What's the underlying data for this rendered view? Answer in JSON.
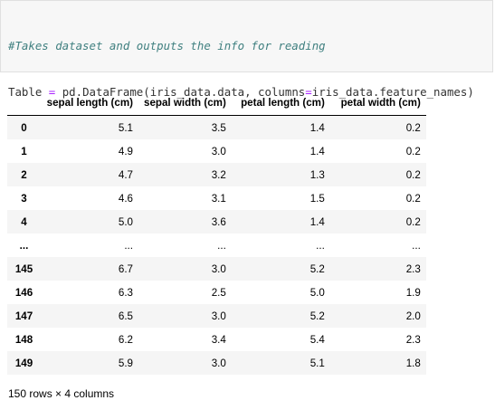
{
  "code": {
    "comment": "#Takes dataset and outputs the info for reading",
    "line2_var": "Table",
    "line2_op": "=",
    "line2_call_a": "pd.DataFrame(iris_data.data, columns",
    "line2_op2": "=",
    "line2_call_b": "iris_data.feature_names)",
    "line4": "Table"
  },
  "table": {
    "index_header": "",
    "columns": [
      "sepal length (cm)",
      "sepal width (cm)",
      "petal length (cm)",
      "petal width (cm)"
    ],
    "rows": [
      {
        "index": "0",
        "values": [
          "5.1",
          "3.5",
          "1.4",
          "0.2"
        ]
      },
      {
        "index": "1",
        "values": [
          "4.9",
          "3.0",
          "1.4",
          "0.2"
        ]
      },
      {
        "index": "2",
        "values": [
          "4.7",
          "3.2",
          "1.3",
          "0.2"
        ]
      },
      {
        "index": "3",
        "values": [
          "4.6",
          "3.1",
          "1.5",
          "0.2"
        ]
      },
      {
        "index": "4",
        "values": [
          "5.0",
          "3.6",
          "1.4",
          "0.2"
        ]
      },
      {
        "index": "...",
        "values": [
          "...",
          "...",
          "...",
          "..."
        ]
      },
      {
        "index": "145",
        "values": [
          "6.7",
          "3.0",
          "5.2",
          "2.3"
        ]
      },
      {
        "index": "146",
        "values": [
          "6.3",
          "2.5",
          "5.0",
          "1.9"
        ]
      },
      {
        "index": "147",
        "values": [
          "6.5",
          "3.0",
          "5.2",
          "2.0"
        ]
      },
      {
        "index": "148",
        "values": [
          "6.2",
          "3.4",
          "5.4",
          "2.3"
        ]
      },
      {
        "index": "149",
        "values": [
          "5.9",
          "3.0",
          "5.1",
          "1.8"
        ]
      }
    ]
  },
  "dimensions": "150 rows × 4 columns"
}
